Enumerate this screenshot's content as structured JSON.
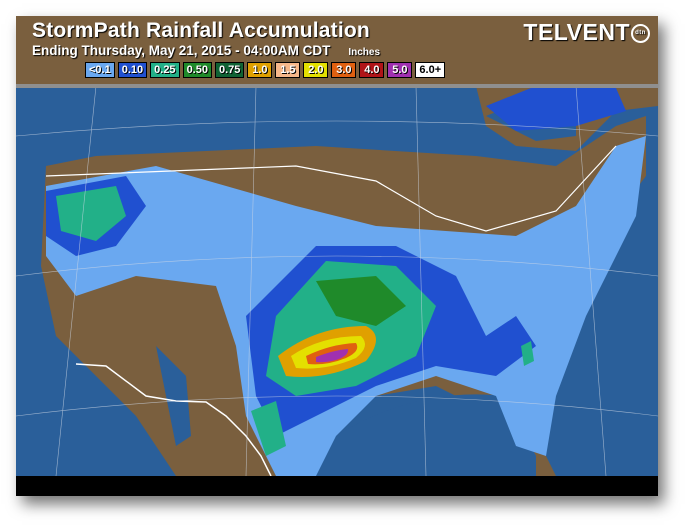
{
  "header": {
    "title": "StormPath Rainfall Accumulation",
    "subtitle": "Ending Thursday, May 21, 2015 - 04:00AM CDT",
    "units": "Inches",
    "logo": "TELVENT",
    "logo_badge": "dtn"
  },
  "legend": [
    {
      "label": "<0.1",
      "color": "#6aa8f0"
    },
    {
      "label": "0.10",
      "color": "#2050d0"
    },
    {
      "label": "0.25",
      "color": "#22b088"
    },
    {
      "label": "0.50",
      "color": "#1f8a2a"
    },
    {
      "label": "0.75",
      "color": "#0f6234"
    },
    {
      "label": "1.0",
      "color": "#e0a000"
    },
    {
      "label": "1.5",
      "color": "#f6b88a"
    },
    {
      "label": "2.0",
      "color": "#e4e000"
    },
    {
      "label": "3.0",
      "color": "#e06010"
    },
    {
      "label": "4.0",
      "color": "#b01418"
    },
    {
      "label": "5.0",
      "color": "#a030b0"
    },
    {
      "label": "6.0+",
      "color": "#ffffff"
    }
  ],
  "map_colors": {
    "ocean": "#2a5f9a",
    "land": "#7a5f3e",
    "border": "#ffffff"
  }
}
